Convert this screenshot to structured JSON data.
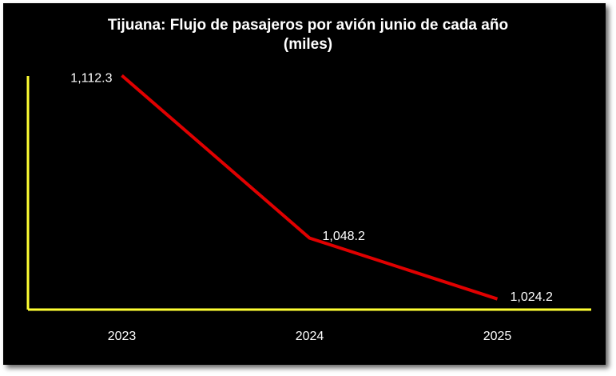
{
  "chart_data": {
    "type": "line",
    "title": "Tijuana: Flujo de pasajeros por avión junio de cada año\n(miles)",
    "categories": [
      "2023",
      "2024",
      "2025"
    ],
    "series": [
      {
        "color": "#e00000",
        "values": [
          1112.3,
          1048.2,
          1024.2
        ],
        "value_labels": [
          "1,112.3",
          "1,048.2",
          "1,024.2"
        ]
      }
    ],
    "ylim": [
      1020,
      1114
    ],
    "axis_color": "#ffff33"
  }
}
